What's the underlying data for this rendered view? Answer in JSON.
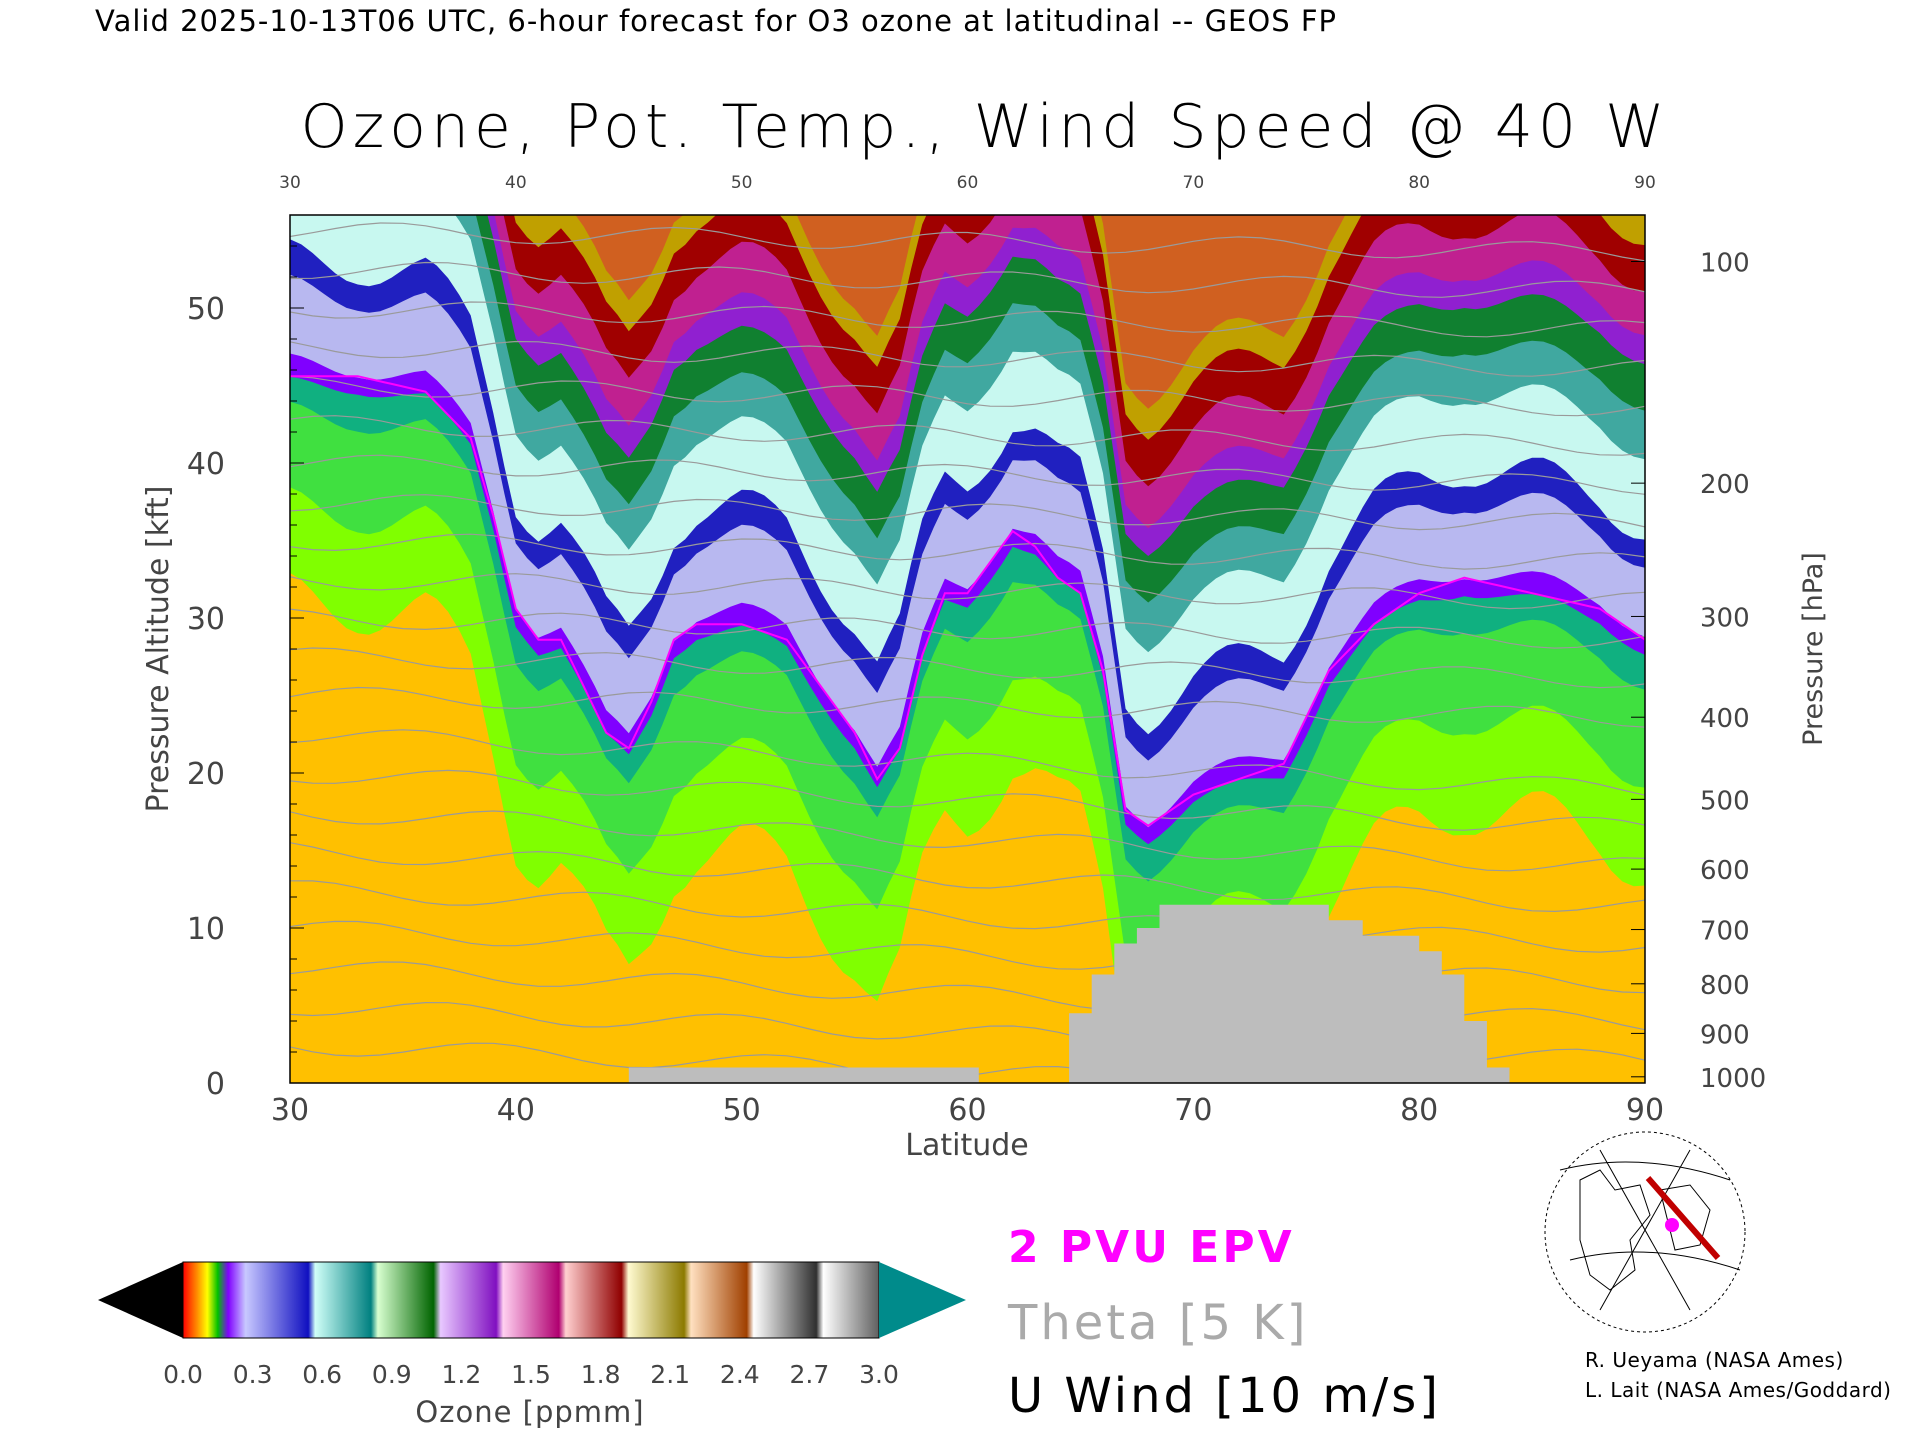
{
  "header": "Valid 2025-10-13T06 UTC, 6-hour forecast for O3 ozone at latitudinal -- GEOS FP",
  "title": "Ozone, Pot. Temp., Wind Speed @ 40 W",
  "chart_data": {
    "type": "heatmap",
    "title": "Ozone, Pot. Temp., Wind Speed @ 40 W",
    "xlabel": "Latitude",
    "ylabel": "Pressure Altitude [kft]",
    "y2label": "Pressure [hPa]",
    "xlim": [
      30,
      90
    ],
    "ylim": [
      0,
      56
    ],
    "x_ticks": [
      30,
      40,
      50,
      60,
      70,
      80,
      90
    ],
    "y_ticks": [
      0,
      10,
      20,
      30,
      40,
      50
    ],
    "y2_ticks": [
      {
        "label": "100",
        "kft": 53
      },
      {
        "label": "200",
        "kft": 38.7
      },
      {
        "label": "300",
        "kft": 30.1
      },
      {
        "label": "400",
        "kft": 23.6
      },
      {
        "label": "500",
        "kft": 18.3
      },
      {
        "label": "600",
        "kft": 13.8
      },
      {
        "label": "700",
        "kft": 9.9
      },
      {
        "label": "800",
        "kft": 6.4
      },
      {
        "label": "900",
        "kft": 3.2
      },
      {
        "label": "1000",
        "kft": 0.4
      }
    ],
    "colorbar": {
      "label": "Ozone [ppmm]",
      "ticks": [
        "0.0",
        "0.3",
        "0.6",
        "0.9",
        "1.2",
        "1.5",
        "1.8",
        "2.1",
        "2.4",
        "2.7",
        "3.0"
      ],
      "min": 0.0,
      "max": 3.0
    },
    "tropopause_kft": [
      [
        30,
        45
      ],
      [
        33,
        45
      ],
      [
        36,
        44
      ],
      [
        38,
        41
      ],
      [
        39,
        36
      ],
      [
        40,
        30
      ],
      [
        41,
        28
      ],
      [
        42,
        28
      ],
      [
        43,
        25
      ],
      [
        44,
        22
      ],
      [
        45,
        21
      ],
      [
        46,
        24
      ],
      [
        47,
        28
      ],
      [
        48,
        29
      ],
      [
        50,
        29
      ],
      [
        52,
        28
      ],
      [
        53,
        26
      ],
      [
        54,
        24
      ],
      [
        55,
        22
      ],
      [
        56,
        19
      ],
      [
        57,
        21
      ],
      [
        58,
        27
      ],
      [
        59,
        31
      ],
      [
        60,
        31
      ],
      [
        61,
        33
      ],
      [
        62,
        35
      ],
      [
        63,
        34
      ],
      [
        64,
        32
      ],
      [
        65,
        31
      ],
      [
        66,
        26
      ],
      [
        67,
        17
      ],
      [
        68,
        16
      ],
      [
        70,
        18
      ],
      [
        72,
        19
      ],
      [
        74,
        20
      ],
      [
        76,
        26
      ],
      [
        78,
        29
      ],
      [
        80,
        31
      ],
      [
        82,
        32
      ],
      [
        85,
        31
      ],
      [
        88,
        30
      ],
      [
        90,
        28
      ]
    ],
    "terrain_kft": [
      [
        45,
        0
      ],
      [
        45,
        1
      ],
      [
        60.5,
        1
      ],
      [
        60.5,
        0
      ],
      [
        64.5,
        0
      ],
      [
        64.5,
        4.5
      ],
      [
        65.5,
        4.5
      ],
      [
        65.5,
        7
      ],
      [
        66.5,
        7
      ],
      [
        66.5,
        9
      ],
      [
        67.5,
        9
      ],
      [
        67.5,
        10
      ],
      [
        68.5,
        10
      ],
      [
        68.5,
        11.5
      ],
      [
        76,
        11.5
      ],
      [
        76,
        10.5
      ],
      [
        77.5,
        10.5
      ],
      [
        77.5,
        9.5
      ],
      [
        80,
        9.5
      ],
      [
        80,
        8.5
      ],
      [
        81,
        8.5
      ],
      [
        81,
        7
      ],
      [
        82,
        7
      ],
      [
        82,
        4
      ],
      [
        83,
        4
      ],
      [
        83,
        1
      ],
      [
        84,
        1
      ],
      [
        84,
        0
      ]
    ]
  },
  "legend": {
    "epv": "2 PVU EPV",
    "theta": "Theta [5 K]",
    "uwind": "U Wind [10 m/s]"
  },
  "credits": [
    "R. Ueyama (NASA Ames)",
    "L. Lait (NASA Ames/Goddard)"
  ]
}
